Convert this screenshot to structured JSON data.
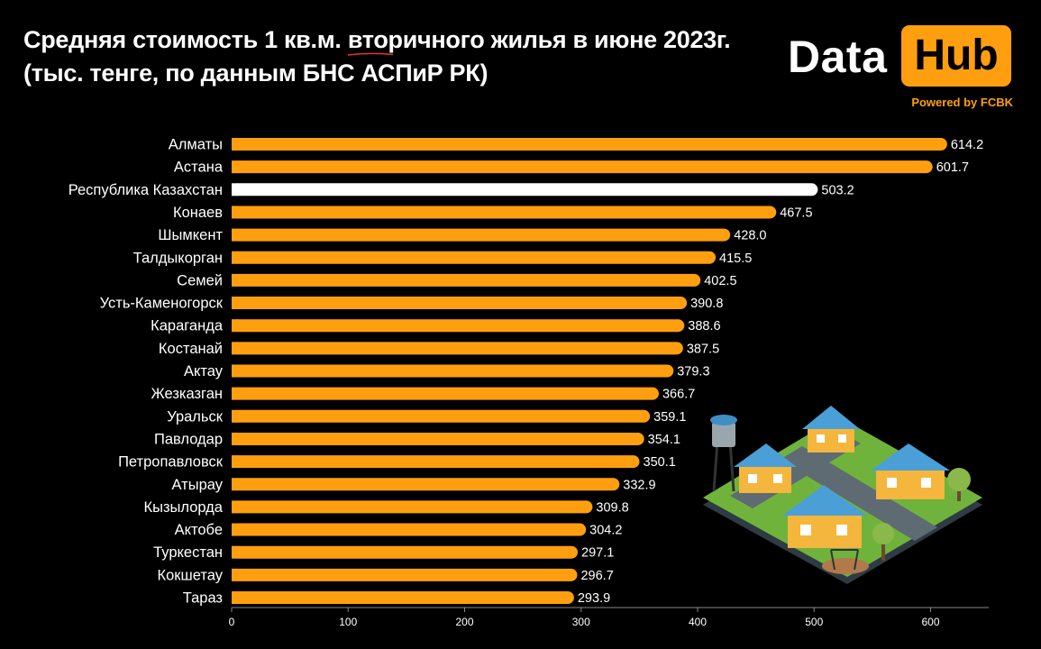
{
  "title": {
    "before": "Средняя стоимость 1 кв.м. ",
    "highlight": "вторичного",
    "after": " жилья в июне 2023г.",
    "line2": "(тыс. тенге, по данным БНС АСПиР РК)"
  },
  "logo": {
    "data_text": "Data",
    "hub_text": "Hub",
    "powered_text": "Powered by FCBK"
  },
  "colors": {
    "accent": "#FF9F0F",
    "highlight_bar": "#FFFFFF",
    "underline": "#E8322C",
    "background": "#000000"
  },
  "chart_data": {
    "type": "bar",
    "orientation": "horizontal",
    "categories": [
      "Алматы",
      "Астана",
      "Республика Казахстан",
      "Конаев",
      "Шымкент",
      "Талдыкорган",
      "Семей",
      "Усть-Каменогорск",
      "Караганда",
      "Костанай",
      "Актау",
      "Жезказган",
      "Уральск",
      "Павлодар",
      "Петропавловск",
      "Атырау",
      "Кызылорда",
      "Актобе",
      "Туркестан",
      "Кокшетау",
      "Тараз"
    ],
    "values": [
      614.2,
      601.7,
      503.2,
      467.5,
      428.0,
      415.5,
      402.5,
      390.8,
      388.6,
      387.5,
      379.3,
      366.7,
      359.1,
      354.1,
      350.1,
      332.9,
      309.8,
      304.2,
      297.1,
      296.7,
      293.9
    ],
    "value_labels": [
      "614.2",
      "601.7",
      "503.2",
      "467.5",
      "428.0",
      "415.5",
      "402.5",
      "390.8",
      "388.6",
      "387.5",
      "379.3",
      "366.7",
      "359.1",
      "354.1",
      "350.1",
      "332.9",
      "309.8",
      "304.2",
      "297.1",
      "296.7",
      "293.9"
    ],
    "highlight_category": "Республика Казахстан",
    "xlim": [
      0,
      650
    ],
    "xticks": [
      0,
      100,
      200,
      300,
      400,
      500,
      600
    ],
    "grid": false
  }
}
